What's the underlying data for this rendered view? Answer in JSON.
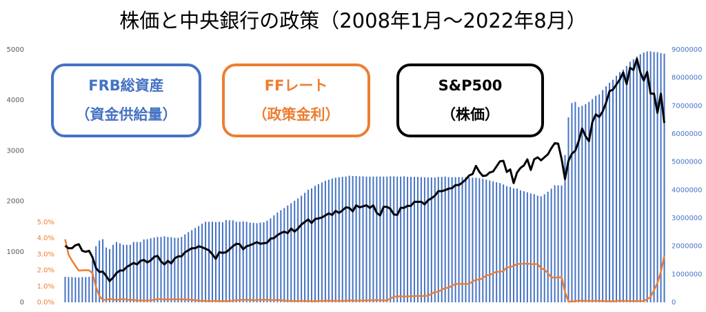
{
  "chart_data": {
    "type": "bar_line",
    "title": "株価と中央銀行の政策（2008年1月～2022年8月）",
    "categories": [
      null,
      null,
      null,
      null,
      null,
      null,
      null,
      null,
      null,
      null,
      null,
      null,
      null,
      null,
      null,
      null,
      null,
      null,
      null,
      null,
      null,
      null,
      null,
      null,
      null,
      null,
      null,
      null,
      null,
      null,
      null,
      null,
      null,
      null,
      null,
      null,
      null,
      null,
      null,
      null,
      null,
      null,
      null,
      null,
      null,
      null,
      null,
      null,
      null,
      null,
      null,
      null,
      null,
      null,
      null,
      null,
      null,
      null,
      null,
      null,
      null,
      null,
      null,
      null,
      null,
      null,
      null,
      null,
      null,
      null,
      null,
      null,
      null,
      null,
      null,
      null,
      null,
      null,
      null,
      null,
      null,
      null,
      null,
      null,
      null,
      null,
      null,
      null,
      null,
      null,
      null,
      null,
      null,
      null,
      null,
      null,
      null,
      null,
      null,
      null,
      null,
      null,
      null,
      null,
      null,
      null,
      null,
      null,
      null,
      null,
      null,
      null,
      null,
      null,
      null,
      null,
      null,
      null,
      null,
      null,
      null,
      null,
      null,
      null,
      null,
      null,
      null,
      null,
      null,
      null,
      null,
      null,
      null,
      null,
      null,
      null,
      null,
      null,
      null,
      null,
      null,
      null,
      null,
      null,
      null,
      null,
      null,
      null,
      null,
      null,
      null,
      null,
      null,
      null,
      null,
      null,
      null,
      null,
      null,
      null,
      null,
      null,
      null,
      null,
      null,
      null,
      null,
      null,
      null,
      null,
      null,
      null,
      null,
      null,
      null,
      null
    ],
    "ylim": [
      0,
      5000
    ],
    "yticks": [
      0,
      1000,
      2000,
      3000,
      4000,
      5000
    ],
    "y2lim": [
      0,
      9000000
    ],
    "y2ticks": [
      0,
      1000000,
      2000000,
      3000000,
      4000000,
      5000000,
      6000000,
      7000000,
      8000000,
      9000000
    ],
    "y3lim": [
      0,
      5
    ],
    "y3ticks": [
      {
        "value": 0,
        "label": "0.0%"
      },
      {
        "value": 1,
        "label": "1.0%"
      },
      {
        "value": 2,
        "label": "2.0%"
      },
      {
        "value": 3,
        "label": "3.0%"
      },
      {
        "value": 4,
        "label": "4.0%"
      },
      {
        "value": 5,
        "label": "5.0%"
      }
    ],
    "series": [
      {
        "name": "FRB総資産",
        "legend_note": "（資金供給量）",
        "color": "#4472c4",
        "kind": "bar",
        "axis": "y2",
        "values": [
          910000,
          900000,
          900000,
          890000,
          890000,
          900000,
          900000,
          910000,
          1500000,
          2000000,
          2200000,
          2250000,
          1950000,
          1900000,
          2050000,
          2150000,
          2100000,
          2050000,
          2050000,
          2050000,
          2150000,
          2150000,
          2150000,
          2240000,
          2250000,
          2280000,
          2310000,
          2330000,
          2330000,
          2350000,
          2330000,
          2320000,
          2300000,
          2300000,
          2330000,
          2420000,
          2500000,
          2570000,
          2650000,
          2720000,
          2800000,
          2870000,
          2870000,
          2870000,
          2860000,
          2870000,
          2850000,
          2930000,
          2920000,
          2920000,
          2870000,
          2870000,
          2880000,
          2870000,
          2840000,
          2830000,
          2820000,
          2840000,
          2850000,
          2910000,
          2990000,
          3100000,
          3200000,
          3280000,
          3360000,
          3450000,
          3530000,
          3620000,
          3700000,
          3800000,
          3900000,
          4010000,
          4060000,
          4150000,
          4210000,
          4270000,
          4330000,
          4370000,
          4410000,
          4440000,
          4460000,
          4470000,
          4480000,
          4510000,
          4500000,
          4500000,
          4490000,
          4490000,
          4480000,
          4480000,
          4480000,
          4480000,
          4480000,
          4480000,
          4480000,
          4490000,
          4490000,
          4480000,
          4480000,
          4490000,
          4470000,
          4470000,
          4470000,
          4470000,
          4460000,
          4450000,
          4450000,
          4450000,
          4450000,
          4470000,
          4470000,
          4480000,
          4460000,
          4460000,
          4460000,
          4460000,
          4460000,
          4460000,
          4440000,
          4440000,
          4440000,
          4420000,
          4400000,
          4370000,
          4340000,
          4310000,
          4280000,
          4250000,
          4200000,
          4140000,
          4110000,
          4060000,
          4050000,
          3990000,
          3960000,
          3920000,
          3880000,
          3850000,
          3800000,
          3780000,
          3850000,
          3940000,
          4050000,
          4170000,
          4170000,
          4160000,
          5250000,
          6590000,
          7100000,
          7140000,
          6960000,
          7000000,
          7060000,
          7140000,
          7240000,
          7360000,
          7410000,
          7560000,
          7700000,
          7820000,
          7930000,
          8070000,
          8200000,
          8290000,
          8420000,
          8570000,
          8660000,
          8760000,
          8840000,
          8900000,
          8940000,
          8940000,
          8920000,
          8910000,
          8880000,
          8860000
        ]
      },
      {
        "name": "FFレート",
        "legend_note": "（政策金利）",
        "color": "#ed7d31",
        "kind": "line",
        "axis": "y3",
        "values": [
          3.94,
          2.98,
          2.61,
          2.28,
          1.98,
          2.0,
          2.01,
          2.0,
          1.81,
          0.97,
          0.39,
          0.16,
          0.15,
          0.22,
          0.18,
          0.15,
          0.18,
          0.21,
          0.16,
          0.16,
          0.15,
          0.12,
          0.12,
          0.12,
          0.11,
          0.13,
          0.16,
          0.2,
          0.2,
          0.18,
          0.18,
          0.19,
          0.19,
          0.19,
          0.19,
          0.18,
          0.17,
          0.16,
          0.14,
          0.1,
          0.09,
          0.09,
          0.07,
          0.1,
          0.08,
          0.07,
          0.08,
          0.07,
          0.08,
          0.1,
          0.13,
          0.14,
          0.16,
          0.16,
          0.16,
          0.13,
          0.14,
          0.16,
          0.16,
          0.16,
          0.14,
          0.15,
          0.14,
          0.15,
          0.11,
          0.09,
          0.09,
          0.08,
          0.08,
          0.09,
          0.08,
          0.09,
          0.07,
          0.07,
          0.08,
          0.09,
          0.09,
          0.1,
          0.09,
          0.09,
          0.09,
          0.09,
          0.09,
          0.12,
          0.11,
          0.11,
          0.11,
          0.12,
          0.12,
          0.13,
          0.13,
          0.14,
          0.14,
          0.12,
          0.12,
          0.24,
          0.34,
          0.38,
          0.36,
          0.37,
          0.37,
          0.38,
          0.39,
          0.4,
          0.4,
          0.4,
          0.41,
          0.54,
          0.65,
          0.66,
          0.79,
          0.9,
          0.91,
          1.04,
          1.15,
          1.16,
          1.15,
          1.15,
          1.16,
          1.3,
          1.41,
          1.42,
          1.51,
          1.69,
          1.7,
          1.82,
          1.91,
          1.91,
          1.95,
          2.19,
          2.2,
          2.27,
          2.4,
          2.4,
          2.41,
          2.42,
          2.39,
          2.38,
          2.4,
          2.13,
          2.04,
          1.83,
          1.55,
          1.55,
          1.55,
          1.58,
          0.65,
          0.05,
          0.05,
          0.08,
          0.09,
          0.1,
          0.09,
          0.09,
          0.09,
          0.09,
          0.09,
          0.08,
          0.07,
          0.07,
          0.06,
          0.08,
          0.1,
          0.09,
          0.08,
          0.08,
          0.08,
          0.08,
          0.08,
          0.08,
          0.2,
          0.33,
          0.77,
          1.21,
          1.9,
          2.9
        ]
      },
      {
        "name": "S&P500",
        "legend_note": "（株価）",
        "color": "#000000",
        "kind": "line",
        "axis": "y",
        "values": [
          1120,
          1070,
          1070,
          1130,
          1150,
          1020,
          1000,
          1020,
          890,
          680,
          600,
          610,
          520,
          420,
          490,
          580,
          630,
          630,
          700,
          740,
          780,
          750,
          820,
          840,
          790,
          830,
          900,
          920,
          810,
          750,
          820,
          770,
          870,
          910,
          910,
          990,
          1030,
          1070,
          1070,
          1110,
          1090,
          1060,
          1030,
          950,
          860,
          990,
          980,
          990,
          1050,
          1110,
          1160,
          1150,
          1050,
          1110,
          1130,
          1160,
          1190,
          1160,
          1170,
          1180,
          1260,
          1270,
          1330,
          1370,
          1400,
          1370,
          1460,
          1400,
          1460,
          1540,
          1590,
          1640,
          1570,
          1650,
          1660,
          1680,
          1720,
          1760,
          1730,
          1810,
          1770,
          1820,
          1880,
          1870,
          1800,
          1920,
          1880,
          1900,
          1920,
          1870,
          1920,
          1770,
          1720,
          1890,
          1890,
          1850,
          1740,
          1730,
          1870,
          1870,
          1910,
          1910,
          1990,
          1990,
          1990,
          1940,
          2020,
          2060,
          2110,
          2200,
          2200,
          2220,
          2250,
          2260,
          2320,
          2320,
          2370,
          2430,
          2510,
          2540,
          2700,
          2580,
          2500,
          2510,
          2570,
          2590,
          2690,
          2790,
          2800,
          2580,
          2630,
          2360,
          2570,
          2660,
          2710,
          2830,
          2620,
          2830,
          2870,
          2810,
          2870,
          2930,
          3050,
          3150,
          3140,
          2840,
          2440,
          2800,
          2940,
          3000,
          3190,
          3440,
          3290,
          3190,
          3570,
          3720,
          3670,
          3780,
          3950,
          4180,
          4210,
          4310,
          4410,
          4550,
          4320,
          4640,
          4600,
          4820,
          4550,
          4390,
          4560,
          4130,
          4130,
          3750,
          4130,
          3550
        ]
      }
    ]
  }
}
